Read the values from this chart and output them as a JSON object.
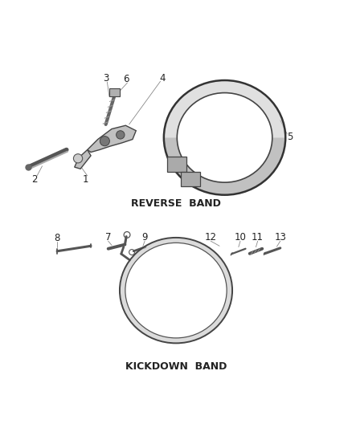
{
  "bg_color": "#ffffff",
  "line_color": "#333333",
  "label_color": "#222222",
  "title1": "REVERSE  BAND",
  "title2": "KICKDOWN  BAND",
  "title_fontsize": 9,
  "label_fontsize": 8.5,
  "figsize": [
    4.38,
    5.33
  ],
  "dpi": 100
}
